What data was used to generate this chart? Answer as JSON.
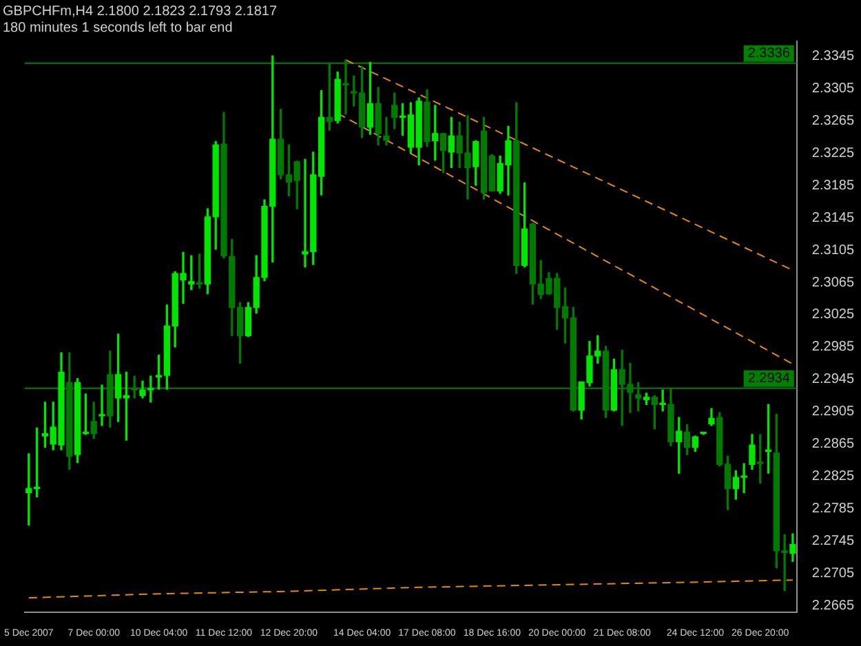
{
  "chart_data": {
    "type": "candlestick",
    "title": "GBPCHFm,H4 2.1800 2.1823 2.1793 2.1817",
    "annotations": [
      "180 minutes 1 seconds left to bar end"
    ],
    "categories": [
      "5 Dec 2007",
      null,
      null,
      null,
      null,
      null,
      null,
      null,
      "7 Dec 00:00",
      null,
      null,
      null,
      null,
      null,
      null,
      null,
      "10 Dec 04:00",
      null,
      null,
      null,
      null,
      null,
      null,
      null,
      "11 Dec 12:00",
      null,
      null,
      null,
      null,
      null,
      null,
      null,
      "12 Dec 20:00",
      null,
      null,
      null,
      null,
      null,
      null,
      null,
      null,
      "14 Dec 04:00",
      null,
      null,
      null,
      null,
      null,
      null,
      null,
      "17 Dec 08:00",
      null,
      null,
      null,
      null,
      null,
      null,
      null,
      "18 Dec 16:00",
      null,
      null,
      null,
      null,
      null,
      null,
      null,
      "20 Dec 00:00",
      null,
      null,
      null,
      null,
      null,
      null,
      null,
      "21 Dec 08:00",
      null,
      null,
      null,
      null,
      null,
      null,
      null,
      null,
      "24 Dec 12:00",
      null,
      null,
      null,
      null,
      null,
      null,
      null,
      "26 Dec 20:00",
      null,
      null,
      null,
      null
    ],
    "colors": [
      "#00e600",
      "#00e600",
      "#00e600",
      "#00e600",
      "#00e600",
      "#007a00",
      "#00e600",
      "#00e600",
      "#007a00",
      "#00e600",
      "#007a00",
      "#00e600",
      "#00e600",
      "#007a00",
      "#00e600",
      "#00e600",
      "#00e600",
      "#00e600",
      "#00e600",
      "#00e600",
      "#00e600",
      "#007a00",
      "#00e600",
      "#00e600",
      "#007a00",
      "#007a00",
      "#007a00",
      "#00e600",
      "#00e600",
      "#00e600",
      "#00e600",
      "#007a00",
      "#007a00",
      "#007a00",
      "#00e600",
      "#00e600",
      "#00e600",
      "#007a00",
      "#00e600",
      "#007a00",
      "#007a00",
      "#007a00",
      "#00e600",
      "#007a00",
      "#007a00",
      "#007a00",
      "#00e600",
      "#00e600",
      "#00e600",
      "#007a00",
      "#00e600",
      "#007a00",
      "#00e600",
      "#007a00",
      "#007a00",
      "#00e600",
      "#007a00",
      "#007a00",
      "#00e600",
      "#00e600",
      "#007a00",
      "#00e600",
      "#007a00",
      "#007a00",
      "#007a00",
      "#007a00",
      "#007a00",
      "#007a00",
      "#00e600",
      "#00e600",
      "#00e600",
      "#007a00",
      "#00e600",
      "#007a00",
      "#007a00",
      "#007a00",
      "#00e600",
      "#007a00",
      "#00e600",
      "#007a00",
      "#00e600",
      "#007a00",
      "#00e600",
      "#00e600",
      "#00e600",
      "#007a00",
      "#007a00",
      "#00e600",
      "#00e600",
      "#00e600",
      "#007a00",
      "#00e600",
      "#007a00",
      "#007a00",
      "#00e600"
    ],
    "ohlc": [
      [
        2.2805,
        2.2853,
        2.2765,
        2.281
      ],
      [
        2.281,
        2.2885,
        2.28,
        2.281
      ],
      [
        2.2875,
        2.2917,
        2.2861,
        2.2878
      ],
      [
        2.2865,
        2.2917,
        2.2858,
        2.2886
      ],
      [
        2.2864,
        2.2978,
        2.2858,
        2.2954
      ],
      [
        2.2941,
        2.2978,
        2.2834,
        2.285
      ],
      [
        2.2852,
        2.2946,
        2.2842,
        2.2941
      ],
      [
        2.2878,
        2.2927,
        2.2877,
        2.288
      ],
      [
        2.2893,
        2.2917,
        2.2872,
        2.2878
      ],
      [
        2.29,
        2.2938,
        2.2888,
        2.2901
      ],
      [
        2.2951,
        2.298,
        2.2886,
        2.29
      ],
      [
        2.2922,
        2.3001,
        2.2893,
        2.2951
      ],
      [
        2.2922,
        2.2954,
        2.287,
        2.2925
      ],
      [
        2.2933,
        2.2949,
        2.2922,
        2.2932
      ],
      [
        2.2925,
        2.2943,
        2.2922,
        2.2932
      ],
      [
        2.2932,
        2.2949,
        2.2917,
        2.2934
      ],
      [
        2.2948,
        2.2975,
        2.2933,
        2.295
      ],
      [
        2.295,
        2.3037,
        2.2933,
        2.3011
      ],
      [
        2.3011,
        2.3078,
        2.2985,
        2.3076
      ],
      [
        2.3068,
        2.3102,
        2.3039,
        2.3076
      ],
      [
        2.3063,
        2.3098,
        2.3056,
        2.3066
      ],
      [
        2.3064,
        2.31,
        2.3058,
        2.3063
      ],
      [
        2.3063,
        2.3156,
        2.3051,
        2.3146
      ],
      [
        2.3146,
        2.3239,
        2.3106,
        2.3235
      ],
      [
        2.3236,
        2.3275,
        2.3095,
        2.3098
      ],
      [
        2.3097,
        2.3118,
        2.2999,
        2.3034
      ],
      [
        2.3034,
        2.304,
        2.2965,
        2.2999
      ],
      [
        2.2999,
        2.304,
        2.2998,
        2.3034
      ],
      [
        2.3034,
        2.3098,
        2.3027,
        2.3071
      ],
      [
        2.3071,
        2.3167,
        2.3067,
        2.3159
      ],
      [
        2.3159,
        2.3345,
        2.309,
        2.3242
      ],
      [
        2.3242,
        2.3279,
        2.3193,
        2.3198
      ],
      [
        2.3198,
        2.3235,
        2.3172,
        2.3189
      ],
      [
        2.3214,
        2.3215,
        2.3156,
        2.3191
      ],
      [
        2.31,
        2.3217,
        2.3084,
        2.3103
      ],
      [
        2.3103,
        2.3226,
        2.3087,
        2.3198
      ],
      [
        2.3196,
        2.3302,
        2.3173,
        2.3269
      ],
      [
        2.3269,
        2.3336,
        2.3253,
        2.3264
      ],
      [
        2.3265,
        2.3325,
        2.3262,
        2.3316
      ],
      [
        2.331,
        2.334,
        2.3273,
        2.3309
      ],
      [
        2.33,
        2.332,
        2.3283,
        2.3299
      ],
      [
        2.3299,
        2.3332,
        2.3244,
        2.3257
      ],
      [
        2.3257,
        2.3337,
        2.3248,
        2.3286
      ],
      [
        2.3286,
        2.3306,
        2.3235,
        2.3249
      ],
      [
        2.3246,
        2.3269,
        2.3235,
        2.3241
      ],
      [
        2.3284,
        2.3299,
        2.3255,
        2.3269
      ],
      [
        2.3269,
        2.3286,
        2.3247,
        2.3269
      ],
      [
        2.3232,
        2.3287,
        2.3225,
        2.3272
      ],
      [
        2.3232,
        2.3293,
        2.321,
        2.3289
      ],
      [
        2.3288,
        2.3303,
        2.3233,
        2.3239
      ],
      [
        2.324,
        2.3284,
        2.3216,
        2.3249
      ],
      [
        2.3249,
        2.3249,
        2.3201,
        2.3228
      ],
      [
        2.3226,
        2.3269,
        2.3207,
        2.3246
      ],
      [
        2.3246,
        2.3263,
        2.3207,
        2.3225
      ],
      [
        2.3225,
        2.3271,
        2.3168,
        2.3207
      ],
      [
        2.3208,
        2.324,
        2.3185,
        2.3239
      ],
      [
        2.3252,
        2.3269,
        2.3168,
        2.3176
      ],
      [
        2.3221,
        2.3223,
        2.3178,
        2.3178
      ],
      [
        2.3178,
        2.3221,
        2.3175,
        2.3212
      ],
      [
        2.321,
        2.3258,
        2.3173,
        2.324
      ],
      [
        2.324,
        2.3287,
        2.3076,
        2.3086
      ],
      [
        2.3086,
        2.3188,
        2.3084,
        2.3131
      ],
      [
        2.3137,
        2.3138,
        2.3038,
        2.3063
      ],
      [
        2.3063,
        2.3092,
        2.3045,
        2.305
      ],
      [
        2.307,
        2.3077,
        2.305,
        2.3051
      ],
      [
        2.307,
        2.3076,
        2.3007,
        2.3034
      ],
      [
        2.3035,
        2.3058,
        2.299,
        2.3021
      ],
      [
        2.3021,
        2.3034,
        2.2906,
        2.2907
      ],
      [
        2.2907,
        2.2942,
        2.2896,
        2.2942
      ],
      [
        2.2941,
        2.2992,
        2.2937,
        2.2974
      ],
      [
        2.2974,
        2.2999,
        2.2965,
        2.298
      ],
      [
        2.298,
        2.2986,
        2.2898,
        2.2907
      ],
      [
        2.2907,
        2.297,
        2.2906,
        2.2957
      ],
      [
        2.2957,
        2.2981,
        2.2888,
        2.2939
      ],
      [
        2.2939,
        2.2965,
        2.2904,
        2.2929
      ],
      [
        2.2926,
        2.2941,
        2.2906,
        2.2922
      ],
      [
        2.292,
        2.2928,
        2.2914,
        2.2923
      ],
      [
        2.2923,
        2.2925,
        2.2884,
        2.2914
      ],
      [
        2.2914,
        2.2932,
        2.2906,
        2.2914
      ],
      [
        2.2914,
        2.2934,
        2.2863,
        2.2868
      ],
      [
        2.2868,
        2.2898,
        2.2829,
        2.2881
      ],
      [
        2.288,
        2.2889,
        2.2852,
        2.2861
      ],
      [
        2.2861,
        2.2875,
        2.2856,
        2.2874
      ],
      [
        2.2878,
        2.2879,
        2.2877,
        2.2878
      ],
      [
        2.289,
        2.2909,
        2.2888,
        2.2897
      ],
      [
        2.2898,
        2.2904,
        2.2838,
        2.284
      ],
      [
        2.284,
        2.285,
        2.2784,
        2.281
      ],
      [
        2.281,
        2.2832,
        2.2797,
        2.2824
      ],
      [
        2.2824,
        2.2841,
        2.2805,
        2.2824
      ],
      [
        2.284,
        2.2877,
        2.2834,
        2.2864
      ],
      [
        2.2842,
        2.2877,
        2.2817,
        2.2841
      ],
      [
        2.2856,
        2.2914,
        2.2829,
        2.2856
      ],
      [
        2.2854,
        2.2902,
        2.2712,
        2.2733
      ],
      [
        2.2733,
        2.2753,
        2.2684,
        2.2731
      ],
      [
        2.273,
        2.2754,
        2.272,
        2.2741
      ]
    ],
    "series": [
      {
        "type": "line",
        "color": "#e68a00",
        "line_style": "dashed",
        "marker": "none",
        "values": [
          null,
          null,
          null,
          null,
          null,
          null,
          null,
          null,
          null,
          null,
          null,
          null,
          null,
          null,
          null,
          null,
          null,
          null,
          null,
          null,
          null,
          null,
          null,
          null,
          null,
          null,
          null,
          null,
          null,
          null,
          null,
          null,
          null,
          null,
          null,
          null,
          null,
          null,
          null,
          2.334,
          null,
          null,
          null,
          null,
          null,
          null,
          null,
          null,
          null,
          null,
          null,
          null,
          null,
          null,
          null,
          null,
          null,
          null,
          null,
          null,
          null,
          null,
          null,
          null,
          null,
          null,
          null,
          null,
          null,
          null,
          null,
          null,
          null,
          null,
          null,
          null,
          null,
          null,
          null,
          null,
          null,
          null,
          null,
          null,
          null,
          null,
          null,
          null,
          null,
          null,
          null,
          null,
          null,
          null,
          2.308
        ]
      },
      {
        "type": "line",
        "color": "#e68a00",
        "line_style": "dashed",
        "marker": "none",
        "values": [
          null,
          null,
          null,
          null,
          null,
          null,
          null,
          null,
          null,
          null,
          null,
          null,
          null,
          null,
          null,
          null,
          null,
          null,
          null,
          null,
          null,
          null,
          null,
          null,
          null,
          null,
          null,
          null,
          null,
          null,
          null,
          null,
          null,
          null,
          null,
          null,
          null,
          null,
          2.3274,
          null,
          null,
          null,
          null,
          null,
          null,
          null,
          null,
          null,
          null,
          null,
          null,
          null,
          null,
          null,
          null,
          null,
          null,
          null,
          null,
          null,
          null,
          null,
          null,
          null,
          null,
          null,
          null,
          null,
          null,
          null,
          null,
          null,
          null,
          null,
          null,
          null,
          null,
          null,
          null,
          null,
          null,
          null,
          null,
          null,
          null,
          null,
          null,
          null,
          null,
          null,
          null,
          null,
          null,
          null,
          2.2964
        ]
      },
      {
        "type": "line",
        "color": "#e68a00",
        "line_style": "dashed",
        "marker": "none",
        "values": [
          2.2675,
          null,
          null,
          null,
          null,
          null,
          null,
          null,
          null,
          null,
          null,
          null,
          null,
          null,
          null,
          null,
          2.268,
          null,
          null,
          null,
          null,
          null,
          null,
          null,
          null,
          null,
          null,
          null,
          null,
          null,
          null,
          null,
          2.2683,
          null,
          null,
          null,
          null,
          null,
          null,
          null,
          null,
          null,
          null,
          null,
          null,
          null,
          null,
          null,
          2.2688,
          null,
          null,
          null,
          null,
          null,
          null,
          null,
          null,
          null,
          null,
          null,
          null,
          null,
          null,
          null,
          2.2691,
          null,
          null,
          null,
          null,
          null,
          null,
          null,
          null,
          null,
          null,
          null,
          null,
          null,
          null,
          null,
          2.2694,
          null,
          null,
          null,
          null,
          null,
          null,
          null,
          null,
          null,
          null,
          null,
          null,
          null,
          2.2697
        ]
      }
    ],
    "ref_lines": [
      {
        "axis": "y",
        "value": 2.3336,
        "label": "2.3336",
        "color": "#008000"
      },
      {
        "axis": "y",
        "value": 2.2934,
        "label": "2.2934",
        "color": "#008000"
      }
    ],
    "ylim": [
      2.2657,
      2.3363
    ],
    "yticks": [
      2.3345,
      2.3305,
      2.3265,
      2.3225,
      2.3185,
      2.3145,
      2.3105,
      2.3065,
      2.3025,
      2.2985,
      2.2945,
      2.2905,
      2.2865,
      2.2825,
      2.2785,
      2.2745,
      2.2705,
      2.2665
    ],
    "grid": false,
    "legend": false
  }
}
